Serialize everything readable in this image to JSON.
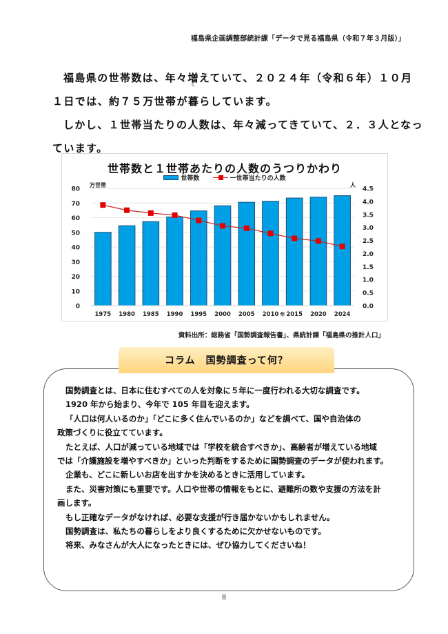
{
  "header": {
    "source_title": "福島県企画調整部統計課「データで見る福島県（令和７年３月版）」"
  },
  "intro": {
    "line1": "福島県の世帯数は、年々増えていて、２０２４年（令和６年）１０月",
    "line2_before": "１日では、約７５万世帯が",
    "line2_ruby_base": "暮",
    "line2_ruby_text": "く",
    "line2_after": "らしています。",
    "line3": "しかし、１世帯当たりの人数は、年々減ってきていて、２．３人となっ",
    "line4": "ています。"
  },
  "chart_data": {
    "type": "bar",
    "title": "世帯数と１世帯あたりの人数のうつりかわり",
    "categories": [
      "1975",
      "1980",
      "1985",
      "1990",
      "1995",
      "2000",
      "2005",
      "2010",
      "2015",
      "2020",
      "2024"
    ],
    "xlabel": "年",
    "ylabel": "万世帯",
    "y2label": "人",
    "ylim": [
      0,
      80
    ],
    "y2lim": [
      0,
      4.5
    ],
    "yticks": [
      "0",
      "10",
      "20",
      "30",
      "40",
      "50",
      "60",
      "70",
      "80"
    ],
    "y2ticks": [
      "0.0",
      "0.5",
      "1.0",
      "1.5",
      "2.0",
      "2.5",
      "3.0",
      "3.5",
      "4.0",
      "4.5"
    ],
    "grid": true,
    "legend_position": "top",
    "series": [
      {
        "name": "世帯数",
        "type": "bar",
        "axis": "left",
        "color": "#00a0e6",
        "values": [
          50,
          54.5,
          57.3,
          60.5,
          64.6,
          68.1,
          70.5,
          71.2,
          73.4,
          74.0,
          75.0
        ]
      },
      {
        "name": "一世帯当たりの人数",
        "type": "line",
        "axis": "right",
        "color": "#e30000",
        "values": [
          3.86,
          3.66,
          3.55,
          3.47,
          3.27,
          3.06,
          2.97,
          2.77,
          2.58,
          2.48,
          2.27
        ]
      }
    ]
  },
  "chart_source": "資料出所：総務省「国勢調査報告書」、県統計課「福島県の推計人口」",
  "column": {
    "tab_title": "コラム　国勢調査って何？",
    "paragraphs": [
      {
        "indent": true,
        "text": "国勢調査とは、日本に住むすべての人を対象に５年に一度行われる大切な調査です。"
      },
      {
        "indent": true,
        "text": "1920 年から始まり、今年で 105 年目を迎えます。"
      },
      {
        "indent": true,
        "text": "「人口は何人いるのか」「どこに多く住んでいるのか」などを調べて、国や自治体の"
      },
      {
        "indent": false,
        "text": "政策づくりに役立てています。"
      },
      {
        "indent": true,
        "text": "たとえば、人口が減っている地域では「学校を統合すべきか」、高齢者が増えている地域"
      },
      {
        "indent": false,
        "text": "では「介護施設を増やすべきか」といった判断をするために国勢調査のデータが使われます。"
      },
      {
        "indent": true,
        "text": "企業も、どこに新しいお店を出すかを決めるときに活用しています。"
      },
      {
        "indent": true,
        "text": "また、災害対策にも重要です。人口や世帯の情報をもとに、避難所の数や支援の方法を計"
      },
      {
        "indent": false,
        "text": "画します。"
      },
      {
        "indent": true,
        "text": "もし正確なデータがなければ、必要な支援が行き届かないかもしれません。"
      },
      {
        "indent": true,
        "text": "国勢調査は、私たちの暮らしをより良くするために欠かせないものです。"
      },
      {
        "indent": true,
        "text": "将来、みなさんが大人になったときには、ぜひ協力してくださいね！"
      }
    ]
  },
  "page_number": "8"
}
